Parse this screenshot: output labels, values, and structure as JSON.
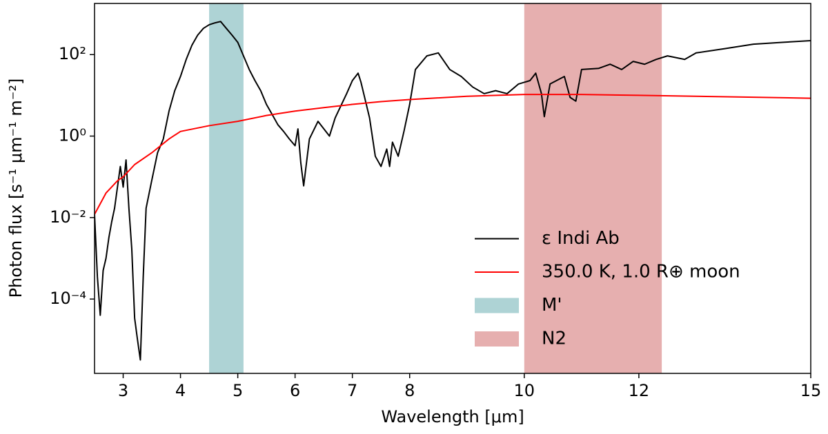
{
  "chart_data": {
    "type": "line",
    "x_label": "Wavelength [μm]",
    "y_label": "Photon flux [s⁻¹ μm⁻¹ m⁻²]",
    "log_y": true,
    "legend": "lower right",
    "xlim": [
      2.5,
      15
    ],
    "ylim": [
      1.5e-06,
      1800
    ],
    "xticks": [
      3,
      4,
      5,
      6,
      7,
      8,
      10,
      12,
      15
    ],
    "yticks": [
      {
        "value": 0.0001,
        "label": "10⁻⁴"
      },
      {
        "value": 0.01,
        "label": "10⁻²"
      },
      {
        "value": 1,
        "label": "10⁰"
      },
      {
        "value": 100,
        "label": "10²"
      }
    ],
    "series": [
      {
        "name": "ε Indi Ab",
        "color": "#000000",
        "x": [
          2.5,
          2.55,
          2.6,
          2.65,
          2.7,
          2.75,
          2.8,
          2.85,
          2.9,
          2.95,
          3.0,
          3.05,
          3.1,
          3.15,
          3.2,
          3.25,
          3.3,
          3.35,
          3.4,
          3.5,
          3.6,
          3.7,
          3.8,
          3.9,
          4.0,
          4.1,
          4.2,
          4.3,
          4.4,
          4.5,
          4.6,
          4.7,
          4.8,
          4.9,
          5.0,
          5.1,
          5.2,
          5.3,
          5.4,
          5.5,
          5.6,
          5.7,
          5.8,
          5.9,
          6.0,
          6.05,
          6.1,
          6.15,
          6.25,
          6.4,
          6.6,
          6.7,
          6.9,
          7.0,
          7.1,
          7.15,
          7.3,
          7.4,
          7.5,
          7.6,
          7.65,
          7.7,
          7.8,
          7.9,
          8.0,
          8.1,
          8.3,
          8.5,
          8.7,
          8.9,
          9.1,
          9.3,
          9.5,
          9.7,
          9.9,
          10.1,
          10.2,
          10.3,
          10.35,
          10.45,
          10.7,
          10.8,
          10.9,
          11.0,
          11.3,
          11.5,
          11.7,
          11.9,
          12.1,
          12.3,
          12.5,
          12.8,
          13.0,
          13.5,
          14.0,
          14.5,
          15.0
        ],
        "values": [
          0.012,
          0.00035,
          4e-05,
          0.0005,
          0.001,
          0.0032,
          0.0079,
          0.017,
          0.056,
          0.18,
          0.056,
          0.26,
          0.017,
          0.0017,
          3.4e-05,
          1e-05,
          3.2e-06,
          0.00035,
          0.017,
          0.083,
          0.39,
          0.85,
          4.1,
          13,
          29,
          76,
          170,
          300,
          440,
          540,
          600,
          650,
          440,
          300,
          200,
          93,
          43,
          23,
          13,
          6.0,
          3.4,
          1.9,
          1.3,
          0.85,
          0.58,
          1.5,
          0.22,
          0.06,
          0.85,
          2.3,
          1.0,
          2.8,
          11,
          23,
          35,
          21,
          2.8,
          0.32,
          0.18,
          0.48,
          0.18,
          0.71,
          0.32,
          1.3,
          6.0,
          43,
          93,
          110,
          43,
          29,
          16,
          11,
          13,
          11,
          19,
          23,
          35,
          11,
          3.0,
          19,
          29,
          8.9,
          7.2,
          43,
          46,
          58,
          43,
          68,
          58,
          76,
          93,
          76,
          110,
          140,
          180,
          200,
          220
        ]
      },
      {
        "name": "350.0 K, 1.0 R⊕ moon",
        "color": "#ff0000",
        "x": [
          2.5,
          2.7,
          2.9,
          3.0,
          3.2,
          3.5,
          3.8,
          4.0,
          4.5,
          5.0,
          5.5,
          6.0,
          6.5,
          7.0,
          7.5,
          8.0,
          9.0,
          10.0,
          11.0,
          12.0,
          13.0,
          14.0,
          15.0
        ],
        "values": [
          0.012,
          0.04,
          0.08,
          0.1,
          0.2,
          0.39,
          0.85,
          1.3,
          1.8,
          2.3,
          3.2,
          4.1,
          5.0,
          6.0,
          7.0,
          7.9,
          9.5,
          10.5,
          10.5,
          10,
          9.5,
          9.0,
          8.5
        ]
      }
    ],
    "spans": [
      {
        "name": "M'",
        "color": "#aed3d5",
        "range": [
          4.5,
          5.1
        ]
      },
      {
        "name": "N2",
        "color": "#e6afaf",
        "range": [
          10.0,
          12.4
        ]
      }
    ]
  }
}
